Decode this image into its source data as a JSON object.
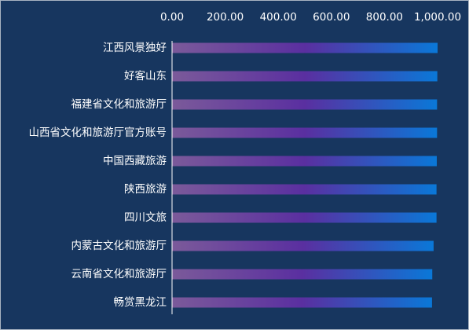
{
  "colors": {
    "background": "#17365f",
    "bar_start": "#7b5a9a",
    "bar_mid": "#5a2fa0",
    "bar_end": "#0a78d8",
    "axis": "#ffffff",
    "text": "#ffffff"
  },
  "chart_data": {
    "type": "bar",
    "orientation": "horizontal",
    "x_axis_position": "top",
    "title": "",
    "xlabel": "",
    "ylabel": "",
    "xlim": [
      0,
      1000
    ],
    "x_ticks": [
      0,
      200,
      400,
      600,
      800,
      1000
    ],
    "x_tick_labels": [
      "0.00",
      "200.00",
      "400.00",
      "600.00",
      "800.00",
      "1,000.00"
    ],
    "grid": false,
    "legend": "none",
    "categories": [
      "江西风景独好",
      "好客山东",
      "福建省文化和旅游厅",
      "山西省文化和旅游厅官方账号",
      "中国西藏旅游",
      "陕西旅游",
      "四川文旅",
      "内蒙古文化和旅游厅",
      "云南省文化和旅游厅",
      "畅赏黑龙江"
    ],
    "values": [
      1000,
      999,
      998,
      998,
      997,
      996,
      996,
      985,
      980,
      979
    ]
  }
}
